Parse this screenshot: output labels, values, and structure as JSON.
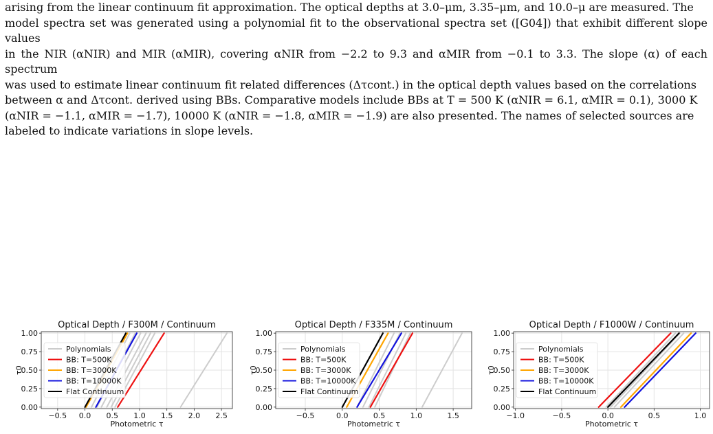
{
  "caption": {
    "lines": [
      "arising from the linear continuum fit approximation. The optical depths at 3.0–μm, 3.35–μm, and 10.0–μ are measured. The",
      "model spectra set was generated using a polynomial fit to the observational spectra set ([G04]) that exhibit different slope values",
      "in the NIR (αNIR) and MIR (αMIR), covering αNIR from −2.2 to 9.3 and αMIR from −0.1 to 3.3. The slope (α) of each spectrum",
      "was used to estimate linear continuum fit related differences (Δτcont.) in the optical depth values based on the correlations",
      "between α and Δτcont. derived using BBs. Comparative models include BBs at T = 500 K (αNIR = 6.1, αMIR = 0.1), 3000 K",
      "(αNIR = −1.1, αMIR = −1.7), 10000 K (αNIR = −1.8, αMIR = −1.9) are also presented. The names of selected sources are",
      "labeled to indicate variations in slope levels."
    ]
  },
  "legend_entries": [
    "Polynomials",
    "BB: T=500K",
    "BB: T=3000K",
    "BB: T=10000K",
    "Flat Continuum"
  ],
  "colors": {
    "polynomials": "#cccccc",
    "bb500": "#ee1111",
    "bb3000": "#ffa500",
    "bb10000": "#1111dd",
    "flat": "#000000",
    "grid": "#e3e3e3"
  },
  "chart_data": [
    {
      "type": "line",
      "title": "Optical Depth / F300M / Continuum",
      "xlabel": "Photometric τ",
      "ylabel": "τ0",
      "xlim": [
        -0.8,
        2.7
      ],
      "ylim": [
        -0.02,
        1.02
      ],
      "xticks": [
        -0.5,
        0.0,
        0.5,
        1.0,
        1.5,
        2.0,
        2.5
      ],
      "xtick_labels": [
        "−0.5",
        "0.0",
        "0.5",
        "1.0",
        "1.5",
        "2.0",
        "2.5"
      ],
      "yticks": [
        0.0,
        0.25,
        0.5,
        0.75,
        1.0
      ],
      "ytick_labels": [
        "0.00",
        "0.25",
        "0.50",
        "0.75",
        "1.00"
      ],
      "grid": true,
      "legend_position": "center-left",
      "series": [
        {
          "name": "Polynomials",
          "role": "polynomials",
          "lines": [
            {
              "x": [
                0.12,
                0.82
              ],
              "y": [
                0,
                1
              ]
            },
            {
              "x": [
                0.22,
                0.92
              ],
              "y": [
                0,
                1
              ]
            },
            {
              "x": [
                0.3,
                1.02
              ],
              "y": [
                0,
                1
              ]
            },
            {
              "x": [
                0.4,
                1.12
              ],
              "y": [
                0,
                1
              ]
            },
            {
              "x": [
                0.48,
                1.2
              ],
              "y": [
                0,
                1
              ]
            },
            {
              "x": [
                0.55,
                1.28
              ],
              "y": [
                0,
                1
              ]
            },
            {
              "x": [
                1.75,
                2.6
              ],
              "y": [
                0,
                1
              ]
            }
          ]
        },
        {
          "name": "BB: T=500K",
          "role": "bb500",
          "lines": [
            {
              "x": [
                0.6,
                1.45
              ],
              "y": [
                0,
                1
              ]
            }
          ]
        },
        {
          "name": "BB: T=3000K",
          "role": "bb3000",
          "lines": [
            {
              "x": [
                0.02,
                0.78
              ],
              "y": [
                0,
                1
              ]
            }
          ]
        },
        {
          "name": "BB: T=10000K",
          "role": "bb10000",
          "lines": [
            {
              "x": [
                0.2,
                0.95
              ],
              "y": [
                0,
                1
              ]
            }
          ]
        },
        {
          "name": "Flat Continuum",
          "role": "flat",
          "lines": [
            {
              "x": [
                0.0,
                0.75
              ],
              "y": [
                0,
                1
              ]
            }
          ]
        }
      ]
    },
    {
      "type": "line",
      "title": "Optical Depth / F335M / Continuum",
      "xlabel": "Photometric τ",
      "ylabel": "τ0",
      "xlim": [
        -0.9,
        1.75
      ],
      "ylim": [
        -0.02,
        1.02
      ],
      "xticks": [
        -0.5,
        0.0,
        0.5,
        1.0,
        1.5
      ],
      "xtick_labels": [
        "−0.5",
        "0.0",
        "0.5",
        "1.0",
        "1.5"
      ],
      "yticks": [
        0.0,
        0.25,
        0.5,
        0.75,
        1.0
      ],
      "ytick_labels": [
        "0.00",
        "0.25",
        "0.50",
        "0.75",
        "1.00"
      ],
      "grid": true,
      "legend_position": "center-left",
      "series": [
        {
          "name": "Polynomials",
          "role": "polynomials",
          "lines": [
            {
              "x": [
                0.2,
                0.7
              ],
              "y": [
                0,
                1
              ]
            },
            {
              "x": [
                0.28,
                0.78
              ],
              "y": [
                0,
                1
              ]
            },
            {
              "x": [
                0.36,
                0.86
              ],
              "y": [
                0,
                1
              ]
            },
            {
              "x": [
                0.44,
                0.92
              ],
              "y": [
                0,
                1
              ]
            },
            {
              "x": [
                1.08,
                1.62
              ],
              "y": [
                0,
                1
              ]
            }
          ]
        },
        {
          "name": "BB: T=500K",
          "role": "bb500",
          "lines": [
            {
              "x": [
                0.38,
                0.95
              ],
              "y": [
                0,
                1
              ]
            }
          ]
        },
        {
          "name": "BB: T=3000K",
          "role": "bb3000",
          "lines": [
            {
              "x": [
                0.06,
                0.62
              ],
              "y": [
                0,
                1
              ]
            }
          ]
        },
        {
          "name": "BB: T=10000K",
          "role": "bb10000",
          "lines": [
            {
              "x": [
                0.2,
                0.8
              ],
              "y": [
                0,
                1
              ]
            }
          ]
        },
        {
          "name": "Flat Continuum",
          "role": "flat",
          "lines": [
            {
              "x": [
                0.0,
                0.55
              ],
              "y": [
                0,
                1
              ]
            }
          ]
        }
      ]
    },
    {
      "type": "line",
      "title": "Optical Depth / F1000W / Continuum",
      "xlabel": "Photometric τ",
      "ylabel": "τ0",
      "xlim": [
        -1.02,
        1.1
      ],
      "ylim": [
        -0.02,
        1.02
      ],
      "xticks": [
        -1.0,
        -0.5,
        0.0,
        0.5,
        1.0
      ],
      "xtick_labels": [
        "−1.0",
        "−0.5",
        "0.0",
        "0.5",
        "1.0"
      ],
      "yticks": [
        0.0,
        0.25,
        0.5,
        0.75,
        1.0
      ],
      "ytick_labels": [
        "0.00",
        "0.25",
        "0.50",
        "0.75",
        "1.00"
      ],
      "grid": true,
      "legend_position": "center-left",
      "series": [
        {
          "name": "Polynomials",
          "role": "polynomials",
          "lines": [
            {
              "x": [
                -0.02,
                0.73
              ],
              "y": [
                0,
                1
              ]
            },
            {
              "x": [
                0.03,
                0.78
              ],
              "y": [
                0,
                1
              ]
            },
            {
              "x": [
                0.07,
                0.82
              ],
              "y": [
                0,
                1
              ]
            }
          ]
        },
        {
          "name": "BB: T=500K",
          "role": "bb500",
          "lines": [
            {
              "x": [
                -0.1,
                0.68
              ],
              "y": [
                0,
                1
              ]
            }
          ]
        },
        {
          "name": "BB: T=3000K",
          "role": "bb3000",
          "lines": [
            {
              "x": [
                0.14,
                0.9
              ],
              "y": [
                0,
                1
              ]
            }
          ]
        },
        {
          "name": "BB: T=10000K",
          "role": "bb10000",
          "lines": [
            {
              "x": [
                0.18,
                0.95
              ],
              "y": [
                0,
                1
              ]
            }
          ]
        },
        {
          "name": "Flat Continuum",
          "role": "flat",
          "lines": [
            {
              "x": [
                0.0,
                0.77
              ],
              "y": [
                0,
                1
              ]
            }
          ]
        }
      ]
    }
  ]
}
